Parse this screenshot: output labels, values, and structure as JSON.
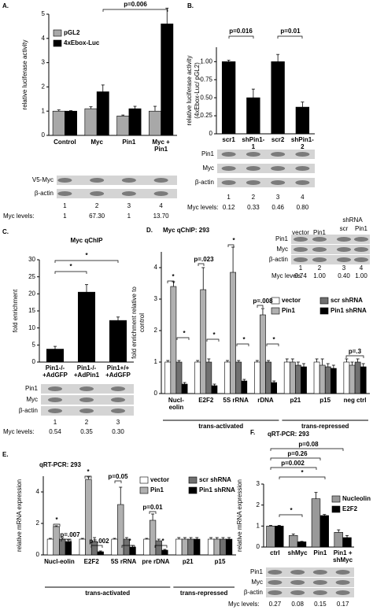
{
  "chart_data": [
    {
      "type": "bar",
      "panel": "A.",
      "ylabel": [
        "relative luciferase activity"
      ],
      "categories": [
        "Control",
        "Myc",
        "Pin1",
        "Myc + Pin1"
      ],
      "series": [
        {
          "name": "pGL2",
          "color": "#a8a8a8",
          "values": [
            1,
            1.1,
            0.8,
            1.0
          ],
          "errors": [
            0.05,
            0.08,
            0.04,
            0.2
          ]
        },
        {
          "name": "4xEbox-Luc",
          "color": "#000000",
          "values": [
            1,
            1.8,
            1.1,
            4.6
          ],
          "errors": [
            0.02,
            0.28,
            0.1,
            0.65
          ]
        }
      ],
      "ylim": [
        0,
        5
      ],
      "yticks": [
        0,
        1,
        2,
        3,
        4,
        5
      ],
      "annotations": [
        "p=0.006"
      ],
      "blot": {
        "rows": [
          "V5-Myc",
          "β-actin"
        ],
        "lanes": [
          1,
          2,
          3,
          4
        ],
        "levels_label": "Myc levels:",
        "levels": [
          "1",
          "67.30",
          "1",
          "13.70"
        ]
      }
    },
    {
      "type": "bar",
      "panel": "B.",
      "ylabel": [
        "relative luciferase activity",
        "(4xEbox-Luc/ pGL2)"
      ],
      "categories": [
        "scr1",
        "shPin1-1",
        "scr2",
        "shPin1-2"
      ],
      "series": [
        {
          "name": null,
          "color": "#000000",
          "values": [
            1.0,
            0.5,
            1.0,
            0.37
          ],
          "errors": [
            0.02,
            0.12,
            0.1,
            0.07
          ]
        }
      ],
      "ylim": [
        0,
        1.2
      ],
      "yticks": [
        0,
        0.25,
        {
          "value": 0.5,
          "label": "0.50"
        },
        0.75,
        {
          "value": 1,
          "label": "1.00"
        }
      ],
      "annotations": [
        "p=0.016",
        "p=0.01"
      ],
      "blot": {
        "rows": [
          "Pin1",
          "Myc",
          "β-actin"
        ],
        "lanes": [
          1,
          2,
          3,
          4
        ],
        "levels_label": "Myc levels:",
        "levels": [
          "0.12",
          "0.33",
          "0.46",
          "0.80"
        ]
      }
    },
    {
      "type": "bar",
      "panel": "C.",
      "title": "Myc qChIP",
      "ylabel": [
        "fold enrichment"
      ],
      "categories": [
        "Pin1-/- +AdGFP",
        "Pin1-/- +AdPin1",
        "Pin1+/+ +AdGFP"
      ],
      "series": [
        {
          "name": null,
          "color": "#000000",
          "values": [
            3.8,
            20.5,
            12.2
          ],
          "errors": [
            0.8,
            2.2,
            1.0
          ]
        }
      ],
      "ylim": [
        0,
        30
      ],
      "yticks": [
        0,
        5,
        10,
        15,
        20,
        25,
        30
      ],
      "annotations": [
        "*",
        "*"
      ],
      "blot": {
        "rows": [
          "Pin1",
          "Myc",
          "β-actin"
        ],
        "lanes": [
          1,
          2,
          3
        ],
        "levels_label": "Myc levels:",
        "levels": [
          "0.54",
          "0.35",
          "0.30"
        ]
      }
    },
    {
      "type": "bar",
      "panel": "D.",
      "title": "Myc qChIP: 293",
      "ylabel": [
        "fold enrichment relative to",
        "control"
      ],
      "categories": [
        "Nucl-eolin",
        "E2F2",
        "5S rRNA",
        "rDNA",
        "p21",
        "p15",
        "neg ctrl"
      ],
      "series": [
        {
          "name": "vector",
          "color": "#ffffff",
          "values": [
            1,
            1,
            1,
            1,
            1,
            1,
            1
          ],
          "errors": [
            0.05,
            0.05,
            0.05,
            0.05,
            0.1,
            0.1,
            0.1
          ]
        },
        {
          "name": "Pin1",
          "color": "#b0b0b0",
          "values": [
            3.4,
            3.3,
            3.85,
            2.5,
            1.0,
            0.9,
            0.9
          ],
          "errors": [
            0.15,
            0.7,
            0.8,
            0.2,
            0.1,
            0.2,
            0.1
          ]
        },
        {
          "name": "scr shRNA",
          "color": "#707070",
          "values": [
            1,
            1,
            1,
            1,
            0.9,
            0.85,
            1.0
          ],
          "errors": [
            0.05,
            0.1,
            0.05,
            0.05,
            0.1,
            0.1,
            0.1
          ]
        },
        {
          "name": "Pin1 shRNA",
          "color": "#000000",
          "values": [
            0.3,
            0.25,
            0.4,
            0.35,
            0.85,
            0.8,
            0.85
          ],
          "errors": [
            0.05,
            0.05,
            0.05,
            0.05,
            0.1,
            0.1,
            0.1
          ]
        }
      ],
      "ylim": [
        0,
        4.5
      ],
      "yticks": [
        0,
        1,
        2,
        3,
        4
      ],
      "annotations": [
        "*",
        "*",
        "p=.023",
        "*",
        "*",
        "*",
        "p=.008",
        "*",
        "p=.3"
      ],
      "group_labels": [
        "trans-activated",
        "trans-repressed"
      ],
      "blot": {
        "headers": [
          "vector",
          "Pin1",
          "shRNA",
          "scr",
          "Pin1"
        ],
        "rows": [
          "Pin1",
          "Myc",
          "β-actin"
        ],
        "lanes": [
          1,
          2,
          3,
          4
        ],
        "levels_label": "Myc levels:",
        "levels": [
          "0.74",
          "1.00",
          "0.40",
          "1.00"
        ]
      }
    },
    {
      "type": "bar",
      "panel": "E.",
      "title": "qRT-PCR: 293",
      "ylabel": [
        "relative mRNA expression"
      ],
      "categories": [
        "Nucl-eolin",
        "E2F2",
        "5S rRNA",
        "pre rDNA",
        "p21",
        "p15"
      ],
      "series": [
        {
          "name": "vector",
          "color": "#ffffff",
          "values": [
            1,
            1,
            1,
            1,
            1,
            1
          ],
          "errors": [
            0.05,
            0.05,
            0.05,
            0.05,
            0.1,
            0.1
          ]
        },
        {
          "name": "Pin1",
          "color": "#b0b0b0",
          "values": [
            1.8,
            4.8,
            3.2,
            2.2,
            1,
            1
          ],
          "errors": [
            0.05,
            0.15,
            1.1,
            0.4,
            0.1,
            0.1
          ]
        },
        {
          "name": "scr shRNA",
          "color": "#707070",
          "values": [
            1,
            0.85,
            1,
            0.9,
            1,
            1
          ],
          "errors": [
            0.1,
            0.25,
            0.1,
            0.1,
            0.1,
            0.1
          ]
        },
        {
          "name": "Pin1 shRNA",
          "color": "#000000",
          "values": [
            0.85,
            0.2,
            0.5,
            0.3,
            1,
            1
          ],
          "errors": [
            0.1,
            0.05,
            0.1,
            0.05,
            0.1,
            0.1
          ]
        }
      ],
      "ylim": [
        0,
        5
      ],
      "yticks": [
        0,
        2,
        4
      ],
      "annotations": [
        "*",
        "p=.007",
        "*",
        "p=.002",
        "p=0.05",
        "*",
        "p=0.01",
        "*"
      ],
      "group_labels": [
        "trans-activated",
        "trans-repressed"
      ]
    },
    {
      "type": "bar",
      "panel": "F.",
      "title": "qRT-PCR: 293",
      "ylabel": [
        "relative mRNA expression"
      ],
      "categories": [
        "ctrl",
        "shMyc",
        "Pin1",
        "Pin1 + shMyc"
      ],
      "series": [
        {
          "name": "Nucleolin",
          "color": "#999999",
          "values": [
            1.0,
            0.55,
            2.3,
            0.7
          ],
          "errors": [
            0.03,
            0.07,
            0.3,
            0.12
          ]
        },
        {
          "name": "E2F2",
          "color": "#000000",
          "values": [
            1.0,
            0.25,
            1.5,
            0.45
          ],
          "errors": [
            0.03,
            0.02,
            0.05,
            0.1
          ]
        }
      ],
      "ylim": [
        0,
        3
      ],
      "yticks": [
        0,
        1,
        2,
        3
      ],
      "annotations": [
        "p=0.08",
        "p=0.26",
        "p=0.002",
        "*",
        "*"
      ],
      "blot": {
        "rows": [
          "Pin1",
          "Myc",
          "β-actin"
        ],
        "levels_label": "Myc levels:",
        "levels": [
          "0.27",
          "0.08",
          "0.15",
          "0.17"
        ]
      }
    }
  ]
}
